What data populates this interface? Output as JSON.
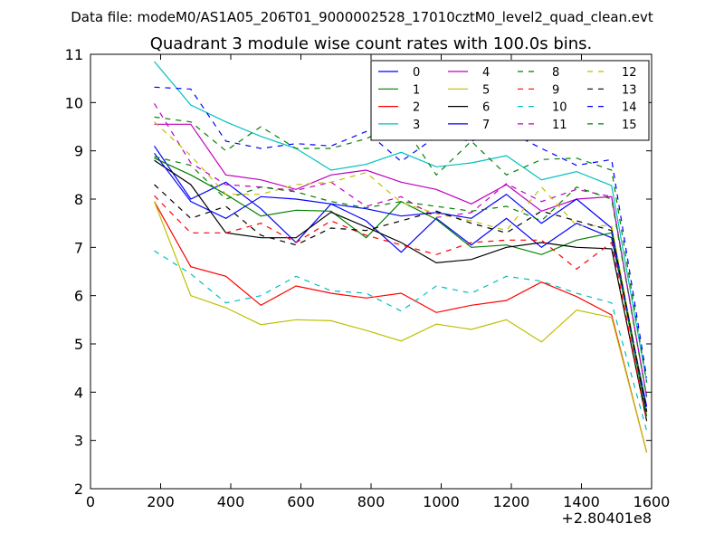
{
  "figure": {
    "suptitle": "Data file: modeM0/AS1A05_206T01_9000002528_17010cztM0_level2_quad_clean.evt",
    "x_offset_label": "+2.80401e8"
  },
  "chart_data": {
    "type": "line",
    "title": "Quadrant 3 module wise count rates with 100.0s bins.",
    "xlabel": "",
    "ylabel": "",
    "xlim": [
      0,
      1600
    ],
    "ylim": [
      2,
      11
    ],
    "x_ticks": [
      0,
      200,
      400,
      600,
      800,
      1000,
      1200,
      1400,
      1600
    ],
    "y_ticks": [
      2,
      3,
      4,
      5,
      6,
      7,
      8,
      9,
      10,
      11
    ],
    "grid": false,
    "legend_position": "top-right",
    "legend_columns": 4,
    "x": [
      182,
      286,
      386,
      486,
      586,
      686,
      786,
      886,
      986,
      1086,
      1186,
      1286,
      1386,
      1486,
      1586
    ],
    "series": [
      {
        "name": "0",
        "color": "#0000ff",
        "style": "solid",
        "values": [
          9.1,
          8.0,
          8.35,
          7.8,
          7.1,
          7.9,
          7.55,
          6.9,
          7.6,
          7.05,
          7.6,
          7.0,
          7.5,
          7.2,
          3.7
        ]
      },
      {
        "name": "1",
        "color": "#008000",
        "style": "solid",
        "values": [
          8.85,
          8.5,
          8.1,
          7.65,
          7.77,
          7.75,
          7.2,
          7.95,
          7.58,
          7.0,
          7.05,
          6.85,
          7.15,
          7.3,
          3.5
        ]
      },
      {
        "name": "2",
        "color": "#ff0000",
        "style": "solid",
        "values": [
          7.95,
          6.6,
          6.4,
          5.8,
          6.2,
          6.05,
          5.95,
          6.05,
          5.65,
          5.8,
          5.9,
          6.28,
          5.98,
          5.6,
          2.75
        ]
      },
      {
        "name": "3",
        "color": "#00bfbf",
        "style": "solid",
        "values": [
          10.85,
          9.95,
          9.6,
          9.3,
          9.05,
          8.6,
          8.72,
          8.97,
          8.67,
          8.75,
          8.9,
          8.4,
          8.57,
          8.28,
          4.2
        ]
      },
      {
        "name": "4",
        "color": "#bf00bf",
        "style": "solid",
        "values": [
          9.55,
          9.55,
          8.5,
          8.4,
          8.2,
          8.5,
          8.6,
          8.35,
          8.2,
          7.9,
          8.3,
          7.75,
          8.0,
          8.05,
          3.9
        ]
      },
      {
        "name": "5",
        "color": "#bfbf00",
        "style": "solid",
        "values": [
          7.95,
          6.0,
          5.75,
          5.4,
          5.5,
          5.48,
          5.28,
          5.06,
          5.41,
          5.3,
          5.5,
          5.04,
          5.7,
          5.55,
          2.75
        ]
      },
      {
        "name": "6",
        "color": "#000000",
        "style": "solid",
        "values": [
          8.8,
          8.3,
          7.3,
          7.2,
          7.2,
          7.73,
          7.42,
          7.1,
          6.68,
          6.75,
          7.0,
          7.1,
          7.0,
          6.97,
          3.4
        ]
      },
      {
        "name": "7",
        "color": "#0000ff",
        "style": "solid",
        "values": [
          8.95,
          7.95,
          7.6,
          8.05,
          8.0,
          7.9,
          7.8,
          7.65,
          7.72,
          7.6,
          8.1,
          7.5,
          8.0,
          7.4,
          3.6
        ]
      },
      {
        "name": "8",
        "color": "#008000",
        "style": "dashed",
        "values": [
          9.7,
          9.6,
          9.0,
          9.5,
          9.05,
          9.05,
          9.25,
          9.6,
          8.5,
          9.2,
          8.5,
          8.82,
          8.85,
          8.6,
          4.2
        ]
      },
      {
        "name": "9",
        "color": "#ff0000",
        "style": "dashed",
        "values": [
          8.07,
          7.3,
          7.3,
          7.5,
          7.1,
          7.55,
          7.25,
          7.05,
          6.85,
          7.1,
          7.15,
          7.15,
          6.55,
          7.1,
          3.4
        ]
      },
      {
        "name": "10",
        "color": "#00bfbf",
        "style": "dashed",
        "values": [
          6.93,
          6.45,
          5.85,
          6.0,
          6.4,
          6.1,
          6.05,
          5.68,
          6.2,
          6.05,
          6.4,
          6.3,
          6.05,
          5.85,
          3.2
        ]
      },
      {
        "name": "11",
        "color": "#bf00bf",
        "style": "dashed",
        "values": [
          9.98,
          8.75,
          8.3,
          8.25,
          8.18,
          8.35,
          7.85,
          8.05,
          7.62,
          7.72,
          8.32,
          7.95,
          8.2,
          8.05,
          3.9
        ]
      },
      {
        "name": "12",
        "color": "#bfbf00",
        "style": "dashed",
        "values": [
          9.6,
          8.9,
          8.1,
          8.1,
          8.3,
          8.35,
          8.55,
          7.93,
          7.7,
          7.55,
          7.35,
          8.25,
          7.45,
          7.45,
          3.6
        ]
      },
      {
        "name": "13",
        "color": "#000000",
        "style": "dashed",
        "values": [
          8.3,
          7.6,
          7.85,
          7.25,
          7.05,
          7.4,
          7.35,
          7.55,
          7.75,
          7.5,
          7.3,
          7.75,
          7.55,
          7.35,
          3.6
        ]
      },
      {
        "name": "14",
        "color": "#0000ff",
        "style": "dashed",
        "values": [
          10.32,
          10.28,
          9.2,
          9.05,
          9.15,
          9.1,
          9.4,
          8.78,
          9.3,
          9.2,
          9.42,
          9.05,
          8.7,
          8.82,
          4.3
        ]
      },
      {
        "name": "15",
        "color": "#008000",
        "style": "dashed",
        "values": [
          8.88,
          8.7,
          8.0,
          8.25,
          8.15,
          7.95,
          7.82,
          7.95,
          7.85,
          7.75,
          7.85,
          7.55,
          8.25,
          8.0,
          3.9
        ]
      }
    ]
  }
}
